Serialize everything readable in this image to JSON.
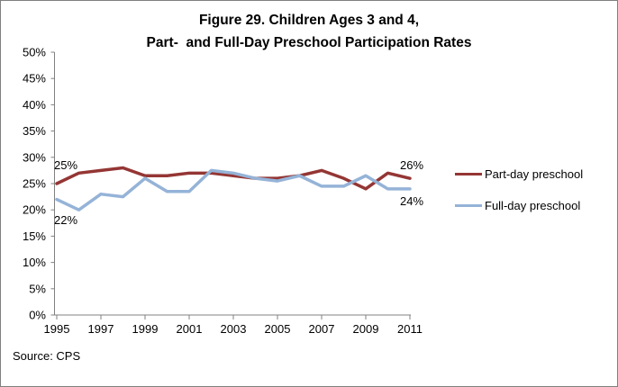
{
  "figure": {
    "title_line1": "Figure 29. Children Ages 3 and 4,",
    "title_line2": "Part-  and Full-Day Preschool Participation Rates",
    "source": "Source: CPS"
  },
  "chart_data": {
    "type": "line",
    "x": [
      1995,
      1996,
      1997,
      1998,
      1999,
      2000,
      2001,
      2002,
      2003,
      2004,
      2005,
      2006,
      2007,
      2008,
      2009,
      2010,
      2011
    ],
    "series": [
      {
        "name": "Part-day preschool",
        "color": "#943634",
        "values": [
          25,
          27,
          27.5,
          28,
          26.5,
          26.5,
          27,
          27,
          26.5,
          26,
          26,
          26.5,
          27.5,
          26,
          24,
          27,
          26
        ]
      },
      {
        "name": "Full-day preschool",
        "color": "#95B3D7",
        "values": [
          22,
          20,
          23,
          22.5,
          26,
          23.5,
          23.5,
          27.5,
          27,
          26,
          25.5,
          26.5,
          24.5,
          24.5,
          26.5,
          24,
          24
        ]
      }
    ],
    "ylim": [
      0,
      50
    ],
    "ytick_step": 5,
    "ytick_labels": [
      "0%",
      "5%",
      "10%",
      "15%",
      "20%",
      "25%",
      "30%",
      "35%",
      "40%",
      "45%",
      "50%"
    ],
    "xtick_labels": [
      "1995",
      "1997",
      "1999",
      "2001",
      "2003",
      "2005",
      "2007",
      "2009",
      "2011"
    ],
    "grid": false,
    "legend_position": "right",
    "axis_color": "#808080",
    "text_color": "#000000",
    "annotations": [
      {
        "text": "25%",
        "series": "Part-day preschool",
        "x": 1995
      },
      {
        "text": "22%",
        "series": "Full-day preschool",
        "x": 1995
      },
      {
        "text": "26%",
        "series": "Part-day preschool",
        "x": 2011
      },
      {
        "text": "24%",
        "series": "Full-day preschool",
        "x": 2011
      }
    ]
  }
}
